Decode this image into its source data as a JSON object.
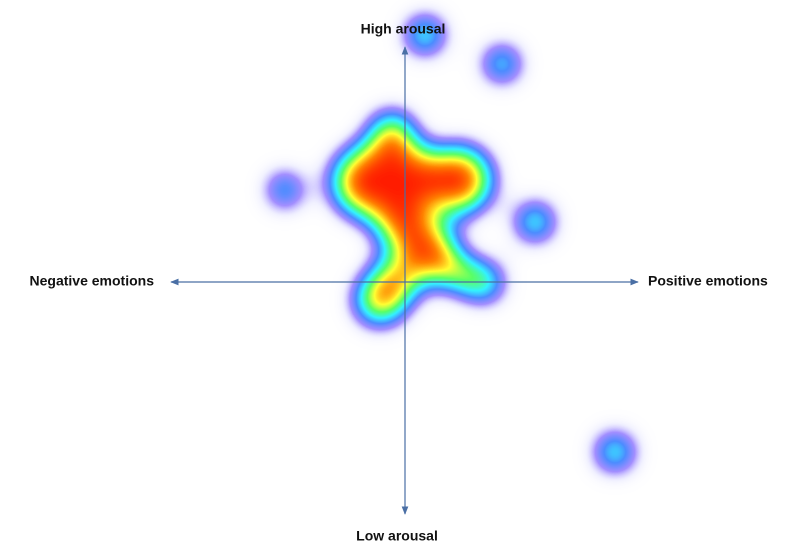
{
  "axes": {
    "top": "High arousal",
    "bottom": "Low arousal",
    "left": "Negative emotions",
    "right": "Positive emotions"
  }
}
